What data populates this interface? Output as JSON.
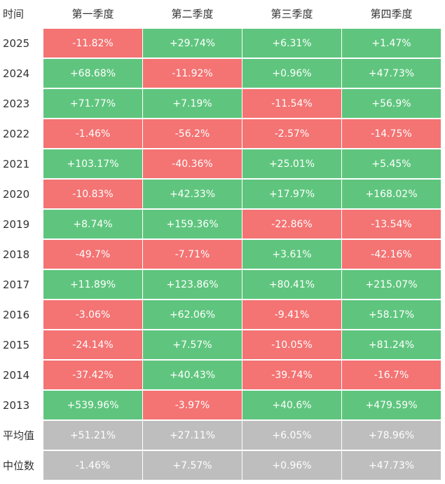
{
  "table": {
    "header": [
      "时间",
      "第一季度",
      "第二季度",
      "第三季度",
      "第四季度"
    ],
    "rows": [
      [
        "2025",
        "-11.82%",
        "+29.74%",
        "+6.31%",
        "+1.47%"
      ],
      [
        "2024",
        "+68.68%",
        "-11.92%",
        "+0.96%",
        "+47.73%"
      ],
      [
        "2023",
        "+71.77%",
        "+7.19%",
        "-11.54%",
        "+56.9%"
      ],
      [
        "2022",
        "-1.46%",
        "-56.2%",
        "-2.57%",
        "-14.75%"
      ],
      [
        "2021",
        "+103.17%",
        "-40.36%",
        "+25.01%",
        "+5.45%"
      ],
      [
        "2020",
        "-10.83%",
        "+42.33%",
        "+17.97%",
        "+168.02%"
      ],
      [
        "2019",
        "+8.74%",
        "+159.36%",
        "-22.86%",
        "-13.54%"
      ],
      [
        "2018",
        "-49.7%",
        "-7.71%",
        "+3.61%",
        "-42.16%"
      ],
      [
        "2017",
        "+11.89%",
        "+123.86%",
        "+80.41%",
        "+215.07%"
      ],
      [
        "2016",
        "-3.06%",
        "+62.06%",
        "-9.41%",
        "+58.17%"
      ],
      [
        "2015",
        "-24.14%",
        "+7.57%",
        "-10.05%",
        "+81.24%"
      ],
      [
        "2014",
        "-37.42%",
        "+40.43%",
        "-39.74%",
        "-16.7%"
      ],
      [
        "2013",
        "+539.96%",
        "-3.97%",
        "+40.6%",
        "+479.59%"
      ]
    ],
    "summary": [
      [
        "平均值",
        "+51.21%",
        "+27.11%",
        "+6.05%",
        "+78.96%"
      ],
      [
        "中位数",
        "-1.46%",
        "+7.57%",
        "+0.96%",
        "+47.73%"
      ]
    ]
  }
}
